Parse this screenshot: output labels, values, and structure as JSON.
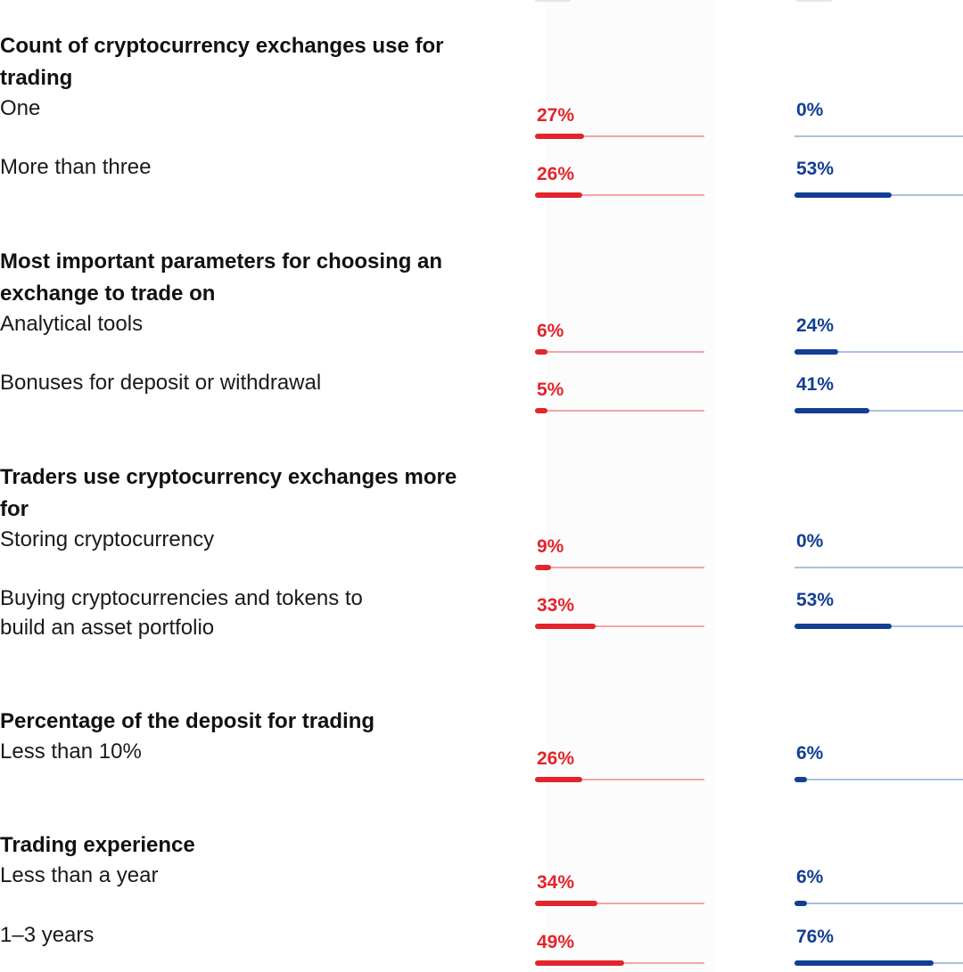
{
  "colors": {
    "series_a": "#e3242b",
    "series_b": "#123f93"
  },
  "chart_data": {
    "type": "bar",
    "orientation": "horizontal",
    "xlim": [
      0,
      100
    ],
    "unit": "%",
    "series": [
      {
        "color": "#e3242b"
      },
      {
        "color": "#123f93"
      }
    ],
    "groups": [
      {
        "title": "Count of cryptocurrency exchanges use for trading",
        "rows": [
          {
            "label": "One",
            "values": [
              27,
              0
            ]
          },
          {
            "label": "More than three",
            "values": [
              26,
              53
            ]
          }
        ]
      },
      {
        "title": "Most important parameters for choosing an exchange to trade on",
        "rows": [
          {
            "label": "Analytical tools",
            "values": [
              6,
              24
            ]
          },
          {
            "label": "Bonuses for deposit or withdrawal",
            "values": [
              5,
              41
            ]
          }
        ]
      },
      {
        "title": "Traders use cryptocurrency exchanges more for",
        "rows": [
          {
            "label": "Storing cryptocurrency",
            "values": [
              9,
              0
            ]
          },
          {
            "label": "Buying cryptocurrencies and tokens to build an asset portfolio",
            "values": [
              33,
              53
            ]
          }
        ]
      },
      {
        "title": "Percentage of the deposit for trading",
        "rows": [
          {
            "label": "Less than 10%",
            "values": [
              26,
              6
            ]
          }
        ]
      },
      {
        "title": "Trading experience",
        "rows": [
          {
            "label": "Less than a year",
            "values": [
              34,
              6
            ]
          },
          {
            "label": "1–3 years",
            "values": [
              49,
              76
            ]
          }
        ]
      }
    ]
  }
}
